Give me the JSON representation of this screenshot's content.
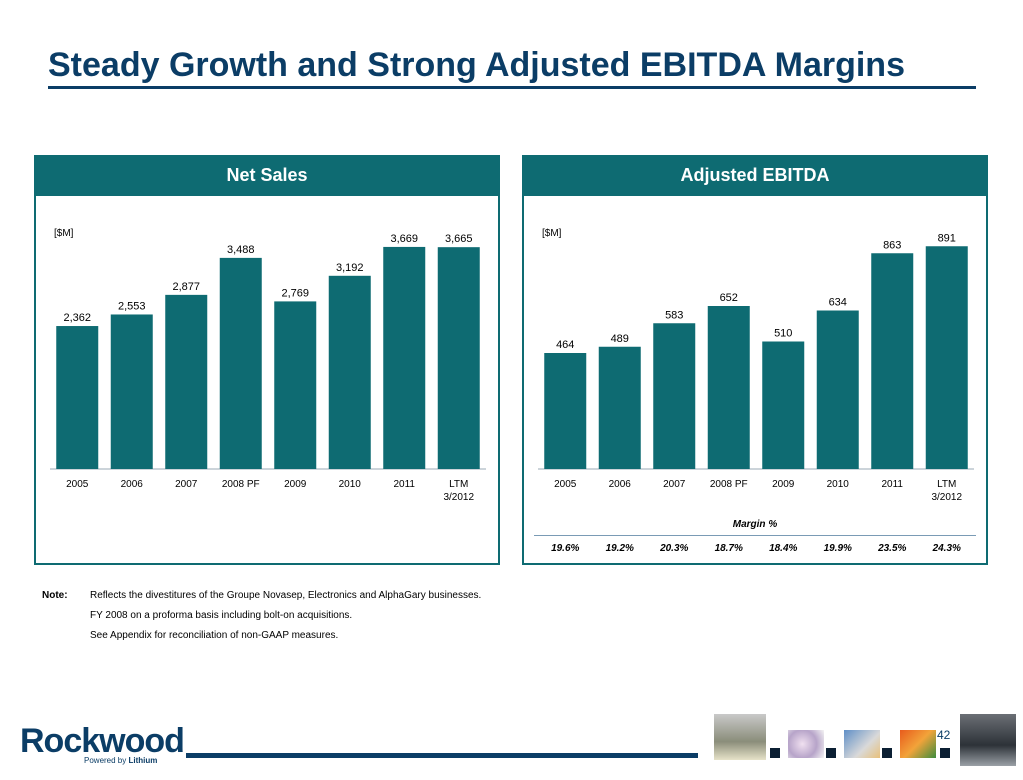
{
  "slide": {
    "title": "Steady Growth and Strong Adjusted EBITDA Margins",
    "page_number": "42"
  },
  "chart_data": [
    {
      "type": "bar",
      "title": "Net Sales",
      "unit_label": "[$M]",
      "categories": [
        "2005",
        "2006",
        "2007",
        "2008 PF",
        "2009",
        "2010",
        "2011",
        "LTM 3/2012"
      ],
      "values": [
        2362,
        2553,
        2877,
        3488,
        2769,
        3192,
        3669,
        3665
      ],
      "value_labels": [
        "2,362",
        "2,553",
        "2,877",
        "3,488",
        "2,769",
        "3,192",
        "3,669",
        "3,665"
      ],
      "bar_color": "#0e6b72",
      "grid": false
    },
    {
      "type": "bar",
      "title": "Adjusted EBITDA",
      "unit_label": "[$M]",
      "categories": [
        "2005",
        "2006",
        "2007",
        "2008 PF",
        "2009",
        "2010",
        "2011",
        "LTM 3/2012"
      ],
      "values": [
        464,
        489,
        583,
        652,
        510,
        634,
        863,
        891
      ],
      "value_labels": [
        "464",
        "489",
        "583",
        "652",
        "510",
        "634",
        "863",
        "891"
      ],
      "bar_color": "#0e6b72",
      "grid": false,
      "margin_title": "Margin %",
      "margins": [
        "19.6%",
        "19.2%",
        "20.3%",
        "18.7%",
        "18.4%",
        "19.9%",
        "23.5%",
        "24.3%"
      ]
    }
  ],
  "notes": {
    "label": "Note:",
    "lines": [
      "Reflects the divestitures of the Groupe Novasep, Electronics and AlphaGary businesses.",
      "FY 2008 on a proforma basis including bolt-on acquisitions.",
      "See Appendix for reconciliation of non-GAAP measures."
    ]
  },
  "logo": {
    "name": "Rockwood",
    "tagline_prefix": "Powered by",
    "tagline_brand": "Lithium"
  },
  "colors": {
    "brand_navy": "#0b3d66",
    "panel_teal": "#0e6b72"
  }
}
